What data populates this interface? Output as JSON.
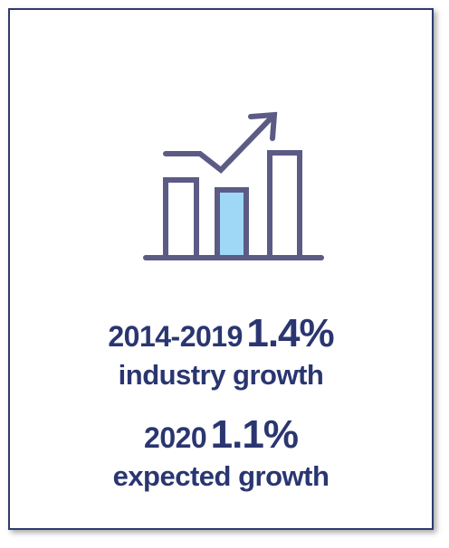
{
  "stats": [
    {
      "period": "2014-2019",
      "value": "1.4%",
      "label": "industry growth"
    },
    {
      "period": "2020",
      "value": "1.1%",
      "label": "expected growth"
    }
  ],
  "icon": {
    "name": "bar-chart-growth-icon",
    "stroke_color": "#5b5b85",
    "highlight_color": "#9fd8f7"
  }
}
